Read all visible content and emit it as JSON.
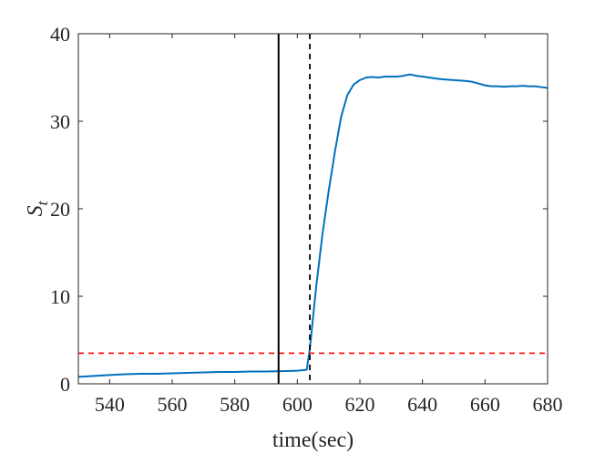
{
  "chart_data": {
    "type": "line",
    "xlabel": "time(sec)",
    "ylabel_main": "S",
    "ylabel_sub": "t",
    "xlim": [
      530,
      680
    ],
    "ylim": [
      0,
      40
    ],
    "x_ticks": [
      540,
      560,
      580,
      600,
      620,
      640,
      660,
      680
    ],
    "y_ticks": [
      0,
      10,
      20,
      30,
      40
    ],
    "grid": false,
    "series": [
      {
        "color": "#0072BD",
        "x": [
          530,
          535,
          540,
          545,
          550,
          555,
          560,
          565,
          570,
          575,
          580,
          585,
          590,
          595,
          600,
          603,
          604,
          606,
          608,
          610,
          612,
          614,
          616,
          618,
          620,
          622,
          624,
          626,
          628,
          630,
          632,
          634,
          636,
          638,
          640,
          642,
          644,
          646,
          648,
          650,
          652,
          654,
          656,
          658,
          660,
          662,
          664,
          666,
          668,
          670,
          672,
          674,
          676,
          678,
          680
        ],
        "y": [
          0.8,
          0.9,
          1.0,
          1.1,
          1.15,
          1.15,
          1.2,
          1.25,
          1.3,
          1.35,
          1.35,
          1.4,
          1.4,
          1.45,
          1.5,
          1.6,
          4.0,
          11.0,
          17.0,
          22.0,
          26.5,
          30.5,
          33.0,
          34.2,
          34.7,
          35.0,
          35.05,
          35.0,
          35.1,
          35.1,
          35.1,
          35.2,
          35.35,
          35.2,
          35.1,
          35.0,
          34.9,
          34.8,
          34.75,
          34.7,
          34.65,
          34.6,
          34.5,
          34.3,
          34.1,
          34.0,
          34.0,
          33.95,
          34.0,
          34.0,
          34.05,
          34.0,
          34.0,
          33.9,
          33.8
        ]
      }
    ],
    "threshold_y": 3.5,
    "threshold_color": "#FF0000",
    "vline_solid_x": 594,
    "vline_dashed_x": 604,
    "vline_color": "#000000"
  }
}
